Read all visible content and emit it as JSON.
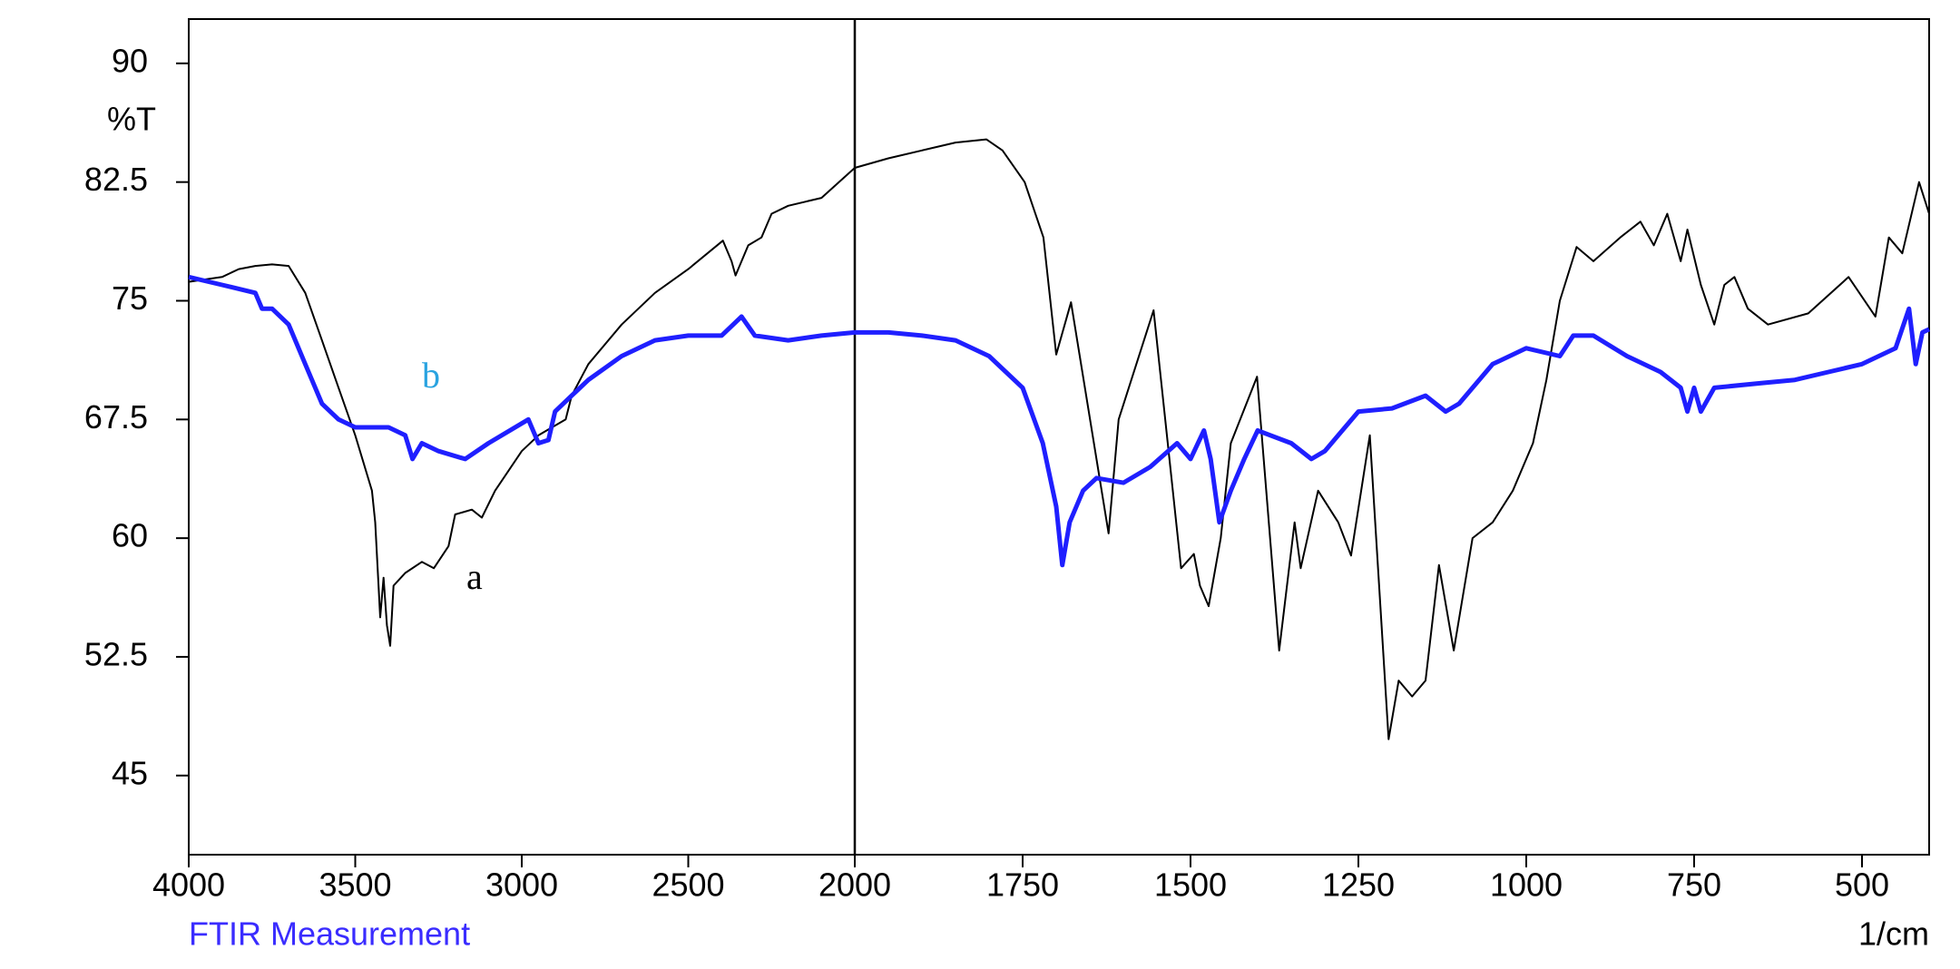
{
  "chart_data": {
    "type": "line",
    "y_label": "%T",
    "x_label": "1/cm",
    "caption": "FTIR Measurement",
    "annotations": [
      "a",
      "b"
    ],
    "xlim": [
      4000,
      400
    ],
    "x_break": 2000,
    "ylim": [
      40,
      92.8
    ],
    "xticks": [
      4000,
      3500,
      3000,
      2500,
      2000,
      1750,
      1500,
      1250,
      1000,
      750,
      500
    ],
    "yticks": [
      45,
      52.5,
      60,
      67.5,
      75,
      82.5,
      90
    ],
    "series": [
      {
        "name": "a",
        "color": "#000000",
        "x": [
          4000,
          3900,
          3850,
          3800,
          3750,
          3700,
          3650,
          3600,
          3550,
          3500,
          3450,
          3440,
          3425,
          3415,
          3405,
          3395,
          3385,
          3350,
          3300,
          3264,
          3220,
          3200,
          3150,
          3120,
          3080,
          3000,
          2950,
          2868,
          2850,
          2800,
          2700,
          2600,
          2500,
          2396,
          2370,
          2358,
          2320,
          2280,
          2250,
          2200,
          2100,
          2000,
          1950,
          1900,
          1850,
          1804,
          1780,
          1747,
          1719,
          1700,
          1678,
          1622,
          1607,
          1555,
          1514,
          1495,
          1486,
          1473,
          1455,
          1440,
          1401,
          1368,
          1345,
          1336,
          1310,
          1280,
          1261,
          1233,
          1205,
          1190,
          1170,
          1150,
          1130,
          1108,
          1080,
          1050,
          1020,
          990,
          970,
          950,
          925,
          900,
          860,
          830,
          810,
          790,
          770,
          760,
          740,
          720,
          705,
          690,
          670,
          640,
          580,
          520,
          480,
          460,
          440,
          415,
          400
        ],
        "values": [
          76.2,
          76.5,
          77,
          77.2,
          77.3,
          77.2,
          75.5,
          72.5,
          69.5,
          66.5,
          63,
          61,
          55,
          57.5,
          54.5,
          53.2,
          57,
          57.8,
          58.5,
          58.1,
          59.5,
          61.5,
          61.8,
          61.3,
          63,
          65.5,
          66.5,
          67.5,
          69,
          71,
          73.5,
          75.5,
          77,
          78.8,
          77.5,
          76.6,
          78.5,
          79,
          80.5,
          81,
          81.5,
          83.4,
          84,
          84.5,
          85,
          85.2,
          84.5,
          82.5,
          79,
          71.6,
          74.9,
          60.3,
          67.5,
          74.4,
          58.1,
          59,
          57,
          55.7,
          60,
          66,
          70.2,
          52.9,
          61,
          58.1,
          63,
          61,
          58.9,
          66.5,
          47.3,
          51,
          50,
          51,
          58.3,
          52.9,
          60,
          61,
          63,
          66,
          70,
          75,
          78.4,
          77.5,
          79,
          80,
          78.5,
          80.5,
          77.5,
          79.5,
          76,
          73.5,
          76,
          76.5,
          74.5,
          73.5,
          74.2,
          76.5,
          74,
          79,
          78,
          82.5,
          80.5
        ]
      },
      {
        "name": "b",
        "color": "#1f1fff",
        "x": [
          4000,
          3900,
          3800,
          3780,
          3750,
          3700,
          3650,
          3600,
          3550,
          3500,
          3400,
          3350,
          3328,
          3300,
          3250,
          3170,
          3100,
          2980,
          2950,
          2920,
          2900,
          2850,
          2800,
          2700,
          2600,
          2500,
          2400,
          2340,
          2300,
          2200,
          2100,
          2000,
          1950,
          1900,
          1850,
          1800,
          1750,
          1720,
          1700,
          1691,
          1680,
          1660,
          1640,
          1600,
          1560,
          1520,
          1500,
          1480,
          1470,
          1457,
          1440,
          1420,
          1400,
          1350,
          1320,
          1300,
          1280,
          1250,
          1200,
          1150,
          1120,
          1100,
          1050,
          1000,
          950,
          930,
          900,
          850,
          800,
          770,
          760,
          750,
          740,
          720,
          650,
          600,
          550,
          500,
          450,
          430,
          420,
          410,
          400
        ],
        "values": [
          76.5,
          76,
          75.5,
          74.5,
          74.5,
          73.5,
          71,
          68.5,
          67.5,
          67,
          67,
          66.5,
          65,
          66,
          65.5,
          65,
          66,
          67.5,
          66,
          66.2,
          68,
          69,
          70,
          71.5,
          72.5,
          72.8,
          72.8,
          74,
          72.8,
          72.5,
          72.8,
          73,
          73,
          72.8,
          72.5,
          71.5,
          69.5,
          66,
          62,
          58.3,
          61,
          63,
          63.8,
          63.5,
          64.5,
          66,
          65,
          66.8,
          65,
          61,
          63,
          65,
          66.8,
          66,
          65,
          65.5,
          66.5,
          68,
          68.2,
          69,
          68,
          68.5,
          71,
          72,
          71.5,
          72.8,
          72.8,
          71.5,
          70.5,
          69.5,
          68,
          69.5,
          68,
          69.5,
          69.8,
          70,
          70.5,
          71,
          72,
          74.5,
          71,
          73,
          73.2
        ]
      }
    ]
  }
}
